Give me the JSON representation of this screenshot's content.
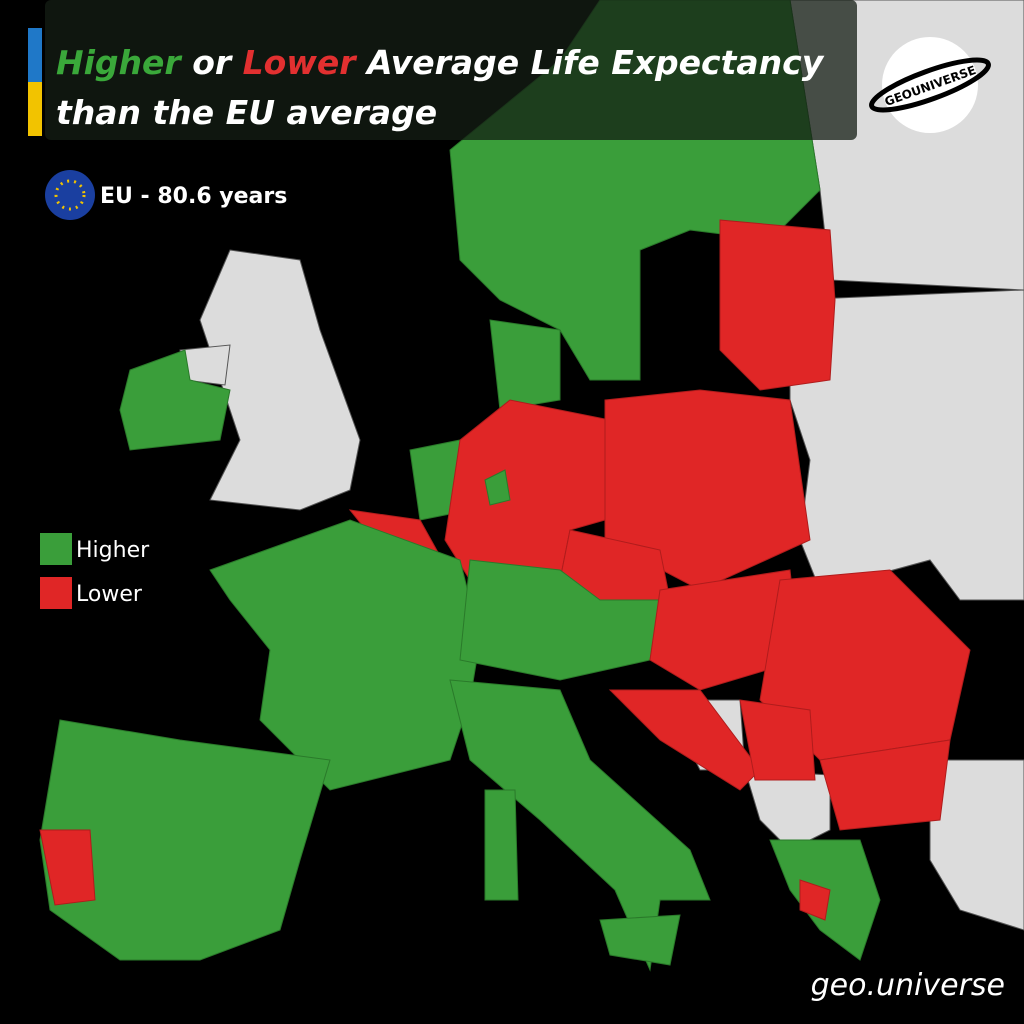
{
  "title": {
    "higher": "Higher",
    "or": "or",
    "lower": "Lower",
    "rest": "Average Life Expectancy",
    "line2": "than the EU average"
  },
  "eu_average": "EU - 80.6 years",
  "logo": "GEOUNIVERSE",
  "legend": [
    {
      "label": "Higher",
      "color": "#3a9e3a"
    },
    {
      "label": "Lower",
      "color": "#e02626"
    }
  ],
  "watermark": "geo.universe"
}
